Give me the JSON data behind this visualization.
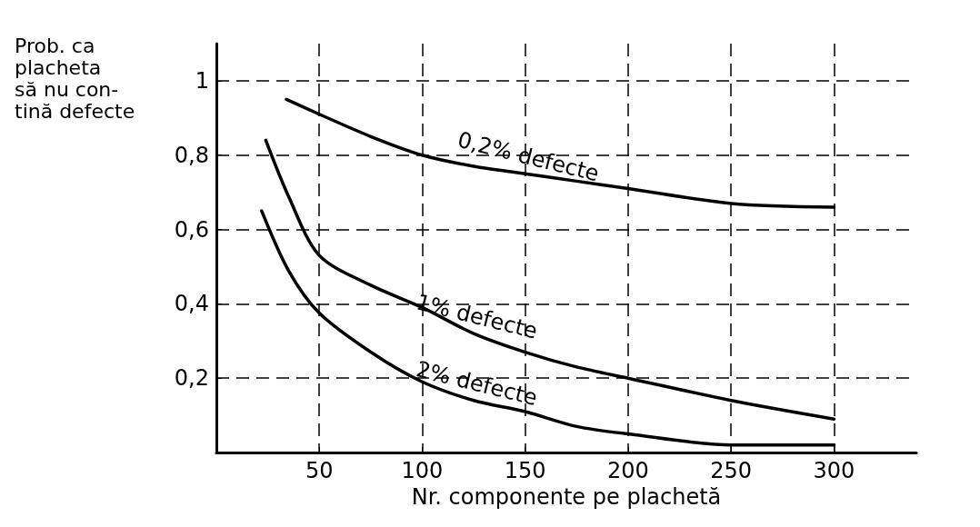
{
  "chart_data": {
    "type": "line",
    "xlabel": "Nr. componente pe plachetă",
    "ylabel": "Prob. ca\nplacheta\nsă nu con-\ntină defecte",
    "xlim": [
      0,
      340
    ],
    "ylim": [
      0,
      1.1
    ],
    "xticks": [
      50,
      100,
      150,
      200,
      250,
      300
    ],
    "yticks": [
      {
        "value": 0.2,
        "label": "0,2"
      },
      {
        "value": 0.4,
        "label": "0,4"
      },
      {
        "value": 0.6,
        "label": "0,6"
      },
      {
        "value": 0.8,
        "label": "0,8"
      },
      1
    ],
    "grid": true,
    "marker": "none",
    "line_style": "solid",
    "legend": false,
    "series": [
      {
        "name": "0,2% defecte",
        "color": "#000000",
        "x": [
          34,
          50,
          75,
          100,
          125,
          150,
          175,
          200,
          250,
          300
        ],
        "values": [
          0.95,
          0.91,
          0.85,
          0.8,
          0.77,
          0.75,
          0.73,
          0.71,
          0.67,
          0.66
        ]
      },
      {
        "name": "1% defecte",
        "color": "#000000",
        "x": [
          24,
          35,
          50,
          75,
          100,
          125,
          150,
          175,
          200,
          250,
          300
        ],
        "values": [
          0.84,
          0.69,
          0.53,
          0.45,
          0.39,
          0.32,
          0.27,
          0.23,
          0.2,
          0.14,
          0.09
        ]
      },
      {
        "name": "2% defecte",
        "color": "#000000",
        "x": [
          22,
          35,
          50,
          75,
          100,
          125,
          150,
          175,
          200,
          250,
          300
        ],
        "values": [
          0.65,
          0.49,
          0.375,
          0.27,
          0.19,
          0.14,
          0.11,
          0.07,
          0.05,
          0.02,
          0.02
        ]
      }
    ]
  }
}
